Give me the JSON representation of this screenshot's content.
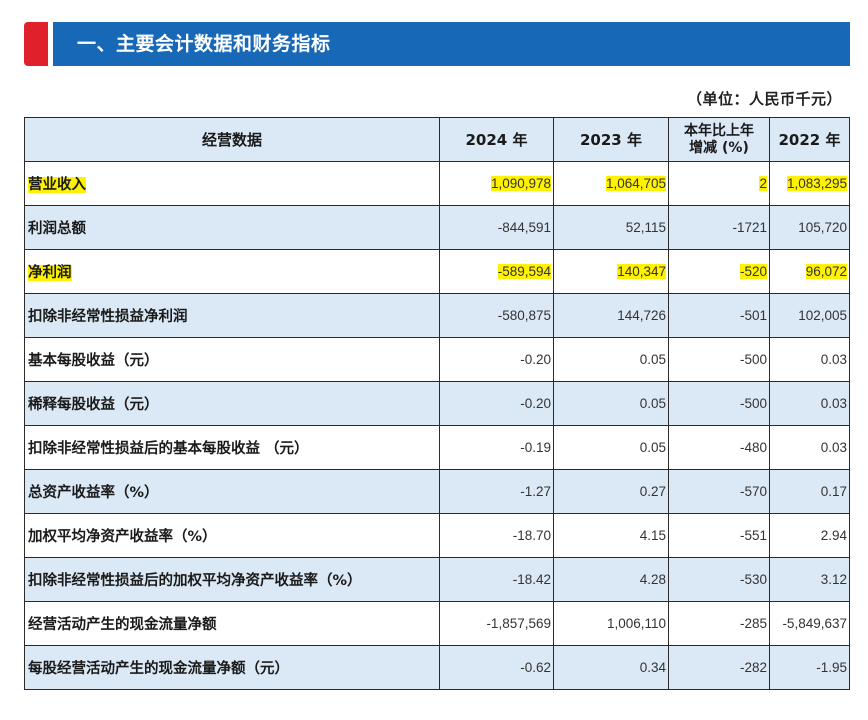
{
  "section": {
    "title": "一、主要会计数据和财务指标",
    "unit": "（单位：人民币千元）"
  },
  "colors": {
    "accent": "#e0202a",
    "banner": "#1769b8",
    "row_alt": "#dbe9f6",
    "highlight": "#fff200"
  },
  "table": {
    "headers": {
      "item": "经营数据",
      "y2024": "2024 年",
      "y2023": "2023 年",
      "change_line1": "本年比上年",
      "change_line2": "增减 (%)",
      "y2022": "2022 年"
    },
    "rows": [
      {
        "label": "营业收入",
        "y2024": "1,090,978",
        "y2023": "1,064,705",
        "change": "2",
        "y2022": "1,083,295",
        "highlight": true
      },
      {
        "label": "利润总额",
        "y2024": "-844,591",
        "y2023": "52,115",
        "change": "-1721",
        "y2022": "105,720",
        "highlight": false
      },
      {
        "label": "净利润",
        "y2024": "-589,594",
        "y2023": "140,347",
        "change": "-520",
        "y2022": "96,072",
        "highlight": true
      },
      {
        "label": "扣除非经常性损益净利润",
        "y2024": "-580,875",
        "y2023": "144,726",
        "change": "-501",
        "y2022": "102,005",
        "highlight": false
      },
      {
        "label": "基本每股收益（元）",
        "y2024": "-0.20",
        "y2023": "0.05",
        "change": "-500",
        "y2022": "0.03",
        "highlight": false
      },
      {
        "label": "稀释每股收益（元）",
        "y2024": "-0.20",
        "y2023": "0.05",
        "change": "-500",
        "y2022": "0.03",
        "highlight": false
      },
      {
        "label": "扣除非经常性损益后的基本每股收益 （元）",
        "y2024": "-0.19",
        "y2023": "0.05",
        "change": "-480",
        "y2022": "0.03",
        "highlight": false
      },
      {
        "label": "总资产收益率（%）",
        "y2024": "-1.27",
        "y2023": "0.27",
        "change": "-570",
        "y2022": "0.17",
        "highlight": false
      },
      {
        "label": "加权平均净资产收益率（%）",
        "y2024": "-18.70",
        "y2023": "4.15",
        "change": "-551",
        "y2022": "2.94",
        "highlight": false
      },
      {
        "label": "扣除非经常性损益后的加权平均净资产收益率（%）",
        "y2024": "-18.42",
        "y2023": "4.28",
        "change": "-530",
        "y2022": "3.12",
        "highlight": false
      },
      {
        "label": "经营活动产生的现金流量净额",
        "y2024": "-1,857,569",
        "y2023": "1,006,110",
        "change": "-285",
        "y2022": "-5,849,637",
        "highlight": false
      },
      {
        "label": "每股经营活动产生的现金流量净额（元）",
        "y2024": "-0.62",
        "y2023": "0.34",
        "change": "-282",
        "y2022": "-1.95",
        "highlight": false
      }
    ]
  }
}
